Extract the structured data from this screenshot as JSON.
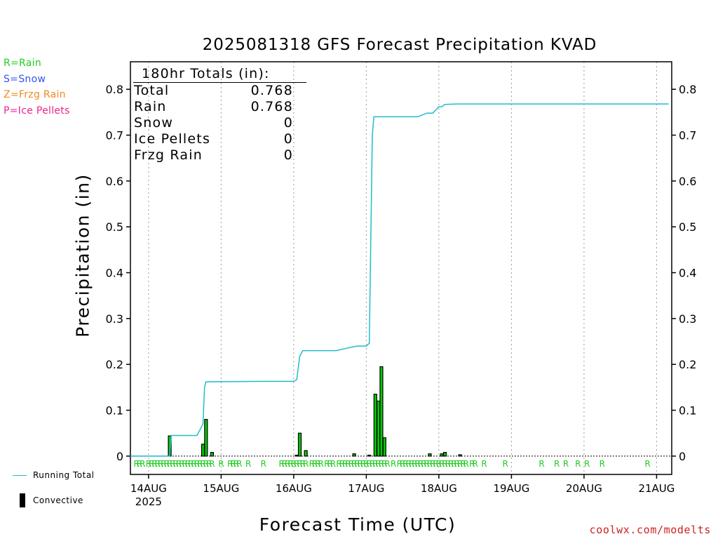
{
  "page": {
    "title": "2025081318 GFS Forecast Precipitation KVAD",
    "credit": "coolwx.com/modelts"
  },
  "type_legend": [
    {
      "label": "R=Rain",
      "color": "#22cc22"
    },
    {
      "label": "S=Snow",
      "color": "#3355ee"
    },
    {
      "label": "Z=Frzg Rain",
      "color": "#ee8822"
    },
    {
      "label": "P=Ice Pellets",
      "color": "#ee2288"
    }
  ],
  "key": {
    "running_total": "Running Total",
    "convective": "Convective",
    "running_total_color": "#22bbcc",
    "convective_color": "#000000"
  },
  "totals": {
    "heading": "180hr Totals (in):",
    "rows": [
      {
        "label": "Total",
        "value": "0.768"
      },
      {
        "label": "Rain",
        "value": "0.768"
      },
      {
        "label": "Snow",
        "value": "0"
      },
      {
        "label": "Ice Pellets",
        "value": "0"
      },
      {
        "label": "Frzg Rain",
        "value": "0"
      }
    ]
  },
  "chart_data": {
    "type": "bar",
    "title": "2025081318 GFS Forecast Precipitation KVAD",
    "xlabel": "Forecast Time (UTC)",
    "ylabel": "Precipitation (in)",
    "x_unit": "hours",
    "xlim": [
      18,
      197
    ],
    "ylim": [
      -0.04,
      0.86
    ],
    "y_ticks": [
      "0",
      "0.1",
      "0.2",
      "0.3",
      "0.4",
      "0.5",
      "0.6",
      "0.7",
      "0.8"
    ],
    "x_ticks": [
      {
        "x": 24,
        "label": "14AUG",
        "sub": "2025"
      },
      {
        "x": 48,
        "label": "15AUG"
      },
      {
        "x": 72,
        "label": "16AUG"
      },
      {
        "x": 96,
        "label": "17AUG"
      },
      {
        "x": 120,
        "label": "18AUG"
      },
      {
        "x": 144,
        "label": "19AUG"
      },
      {
        "x": 168,
        "label": "20AUG"
      },
      {
        "x": 192,
        "label": "21AUG"
      }
    ],
    "grid": "vertical dotted",
    "convective_bars": {
      "x": [
        24,
        25,
        27,
        28,
        29,
        30,
        31,
        33,
        34,
        35,
        37,
        38,
        39,
        40,
        41,
        42,
        43,
        45,
        46,
        48,
        50,
        52,
        53,
        54,
        56,
        58,
        60,
        62,
        64,
        66,
        68,
        70,
        72,
        73,
        74,
        75,
        76,
        77,
        78,
        80,
        81,
        83,
        84,
        85,
        86,
        87,
        88,
        89,
        90,
        91,
        92,
        93,
        94,
        95,
        96,
        97,
        98,
        99,
        100,
        101,
        102,
        103,
        104,
        105,
        106,
        107,
        108,
        109,
        110,
        111,
        112,
        113,
        114,
        115,
        116,
        117,
        118,
        119,
        120,
        121,
        122,
        123,
        124,
        125,
        126,
        127,
        128,
        129,
        132,
        133,
        135,
        137,
        141,
        147,
        150,
        152,
        155,
        157,
        160,
        163,
        168,
        172,
        174,
        177,
        180,
        183,
        186,
        189,
        192,
        195
      ],
      "values": [
        0,
        0,
        0,
        0,
        0,
        0,
        0.044,
        0,
        0,
        0,
        0,
        0,
        0,
        0,
        0,
        0.026,
        0.08,
        0.008,
        0,
        0,
        0,
        0,
        0,
        0,
        0,
        0,
        0,
        0,
        0,
        0,
        0,
        0,
        0,
        0.002,
        0.05,
        0,
        0.012,
        0,
        0,
        0,
        0,
        0,
        0,
        0,
        0,
        0,
        0,
        0,
        0,
        0,
        0.005,
        0,
        0,
        0,
        0,
        0.002,
        0,
        0.135,
        0.12,
        0.195,
        0.04,
        0,
        0,
        0,
        0,
        0,
        0,
        0,
        0,
        0,
        0,
        0,
        0,
        0,
        0,
        0.005,
        0,
        0,
        0,
        0.005,
        0.008,
        0,
        0,
        0,
        0,
        0.003,
        0,
        0,
        0,
        0,
        0,
        0,
        0,
        0,
        0,
        0,
        0,
        0,
        0,
        0,
        0,
        0,
        0,
        0,
        0,
        0,
        0,
        0,
        0,
        0
      ]
    },
    "running_total": {
      "name": "Running Total",
      "x": [
        18,
        31,
        31.5,
        40,
        42,
        42.5,
        43,
        62,
        72,
        73,
        74,
        75,
        86,
        90,
        93,
        96,
        97,
        98,
        98.5,
        99,
        113,
        116,
        118,
        120,
        121,
        122,
        126,
        196
      ],
      "y": [
        0,
        0,
        0.045,
        0.045,
        0.07,
        0.15,
        0.162,
        0.163,
        0.163,
        0.167,
        0.218,
        0.23,
        0.23,
        0.236,
        0.24,
        0.24,
        0.246,
        0.7,
        0.74,
        0.74,
        0.74,
        0.748,
        0.748,
        0.762,
        0.762,
        0.767,
        0.768,
        0.768
      ]
    },
    "type_codes": {
      "label": "R",
      "x": [
        20,
        21,
        22,
        24,
        25,
        26,
        27,
        28,
        29,
        30,
        31,
        32,
        33,
        34,
        35,
        36,
        37,
        38,
        39,
        40,
        41,
        42,
        43,
        44,
        45,
        48,
        51,
        52,
        53,
        54,
        57,
        62,
        68,
        69,
        70,
        71,
        72,
        73,
        74,
        75,
        76,
        78,
        79,
        80,
        81,
        83,
        84,
        85,
        87,
        88,
        89,
        90,
        91,
        92,
        93,
        94,
        95,
        96,
        97,
        98,
        99,
        100,
        101,
        102,
        103,
        105,
        107,
        108,
        109,
        110,
        111,
        112,
        113,
        114,
        115,
        116,
        117,
        118,
        119,
        120,
        121,
        122,
        123,
        124,
        125,
        126,
        127,
        128,
        129,
        131,
        132,
        135,
        142,
        154,
        159,
        162,
        166,
        169,
        174,
        189
      ]
    }
  }
}
